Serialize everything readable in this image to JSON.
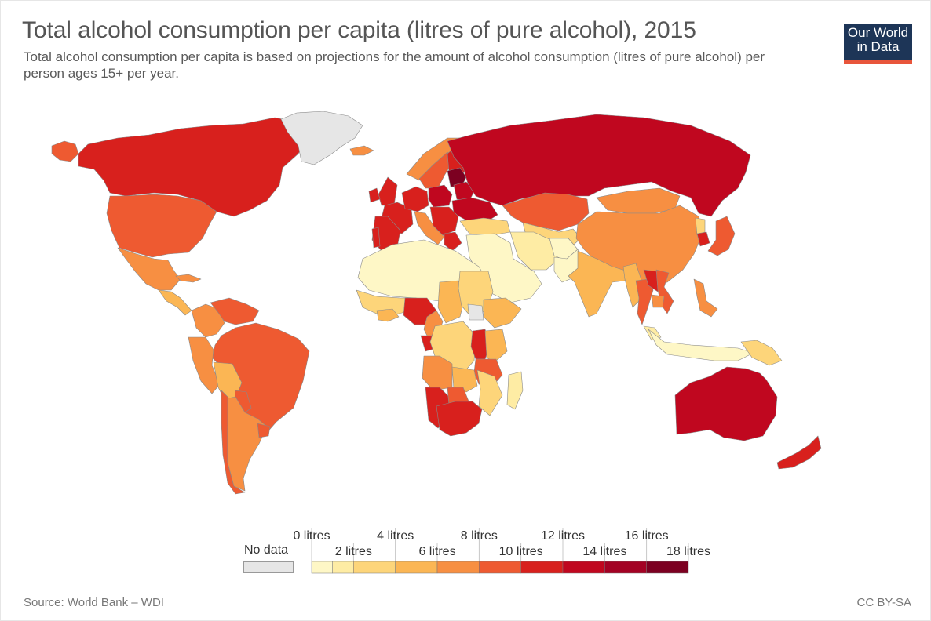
{
  "title": "Total alcohol consumption per capita (litres of pure alcohol), 2015",
  "subtitle": "Total alcohol consumption per capita is based on projections for the amount of alcohol consumption (litres of pure alcohol) per person ages 15+ per year.",
  "logo": {
    "line1": "Our World",
    "line2": "in Data",
    "bg_color": "#1d3557",
    "accent_color": "#e8553b"
  },
  "legend": {
    "no_data_label": "No data",
    "no_data_color": "#e6e6e6",
    "bins": [
      {
        "min": 0,
        "max": 1,
        "color": "#fef7c6"
      },
      {
        "min": 1,
        "max": 2,
        "color": "#feeca4"
      },
      {
        "min": 2,
        "max": 4,
        "color": "#fdd57a"
      },
      {
        "min": 4,
        "max": 6,
        "color": "#fbb654"
      },
      {
        "min": 6,
        "max": 8,
        "color": "#f78f42"
      },
      {
        "min": 8,
        "max": 10,
        "color": "#ee5a31"
      },
      {
        "min": 10,
        "max": 12,
        "color": "#d8201d"
      },
      {
        "min": 12,
        "max": 14,
        "color": "#c0071f"
      },
      {
        "min": 14,
        "max": 16,
        "color": "#a30224"
      },
      {
        "min": 16,
        "max": 18,
        "color": "#7c0021"
      }
    ],
    "tick_labels_top": [
      "0 litres",
      "4 litres",
      "8 litres",
      "12 litres",
      "16 litres"
    ],
    "tick_labels_bottom": [
      "2 litres",
      "6 litres",
      "10 litres",
      "14 litres",
      "18 litres"
    ]
  },
  "regions": [
    {
      "name": "Alaska",
      "value": 9.5
    },
    {
      "name": "Canada",
      "value": 10.2
    },
    {
      "name": "United States",
      "value": 9.3
    },
    {
      "name": "Mexico",
      "value": 6.5
    },
    {
      "name": "Central America",
      "value": 4.2
    },
    {
      "name": "Cuba",
      "value": 6.0
    },
    {
      "name": "Greenland",
      "value": null
    },
    {
      "name": "Colombia",
      "value": 6.0
    },
    {
      "name": "Venezuela",
      "value": 8.2
    },
    {
      "name": "Brazil",
      "value": 8.9
    },
    {
      "name": "Peru",
      "value": 7.0
    },
    {
      "name": "Bolivia",
      "value": 4.8
    },
    {
      "name": "Paraguay",
      "value": 8.6
    },
    {
      "name": "Chile",
      "value": 8.9
    },
    {
      "name": "Argentina",
      "value": 7.6
    },
    {
      "name": "Uruguay",
      "value": 8.3
    },
    {
      "name": "Iceland",
      "value": 6.3
    },
    {
      "name": "United Kingdom",
      "value": 11.0
    },
    {
      "name": "Ireland",
      "value": 11.1
    },
    {
      "name": "Norway",
      "value": 7.0
    },
    {
      "name": "Sweden",
      "value": 8.5
    },
    {
      "name": "Finland",
      "value": 10.5
    },
    {
      "name": "France",
      "value": 11.6
    },
    {
      "name": "Spain",
      "value": 10.4
    },
    {
      "name": "Portugal",
      "value": 11.9
    },
    {
      "name": "Germany",
      "value": 11.4
    },
    {
      "name": "Poland",
      "value": 12.8
    },
    {
      "name": "Baltic states",
      "value": 16.5
    },
    {
      "name": "Belarus",
      "value": 13.7
    },
    {
      "name": "Ukraine",
      "value": 13.0
    },
    {
      "name": "Italy",
      "value": 7.6
    },
    {
      "name": "Balkans",
      "value": 10.5
    },
    {
      "name": "Greece",
      "value": 10.6
    },
    {
      "name": "Turkey",
      "value": 2.0
    },
    {
      "name": "Russia",
      "value": 13.9
    },
    {
      "name": "Kazakhstan",
      "value": 9.2
    },
    {
      "name": "Central Asia",
      "value": 3.0
    },
    {
      "name": "Mongolia",
      "value": 7.4
    },
    {
      "name": "China",
      "value": 7.2
    },
    {
      "name": "North Korea",
      "value": 3.9
    },
    {
      "name": "South Korea",
      "value": 10.9
    },
    {
      "name": "Japan",
      "value": 8.0
    },
    {
      "name": "Middle East",
      "value": 0.5
    },
    {
      "name": "Iran",
      "value": 1.0
    },
    {
      "name": "Afghanistan",
      "value": 0.2
    },
    {
      "name": "Pakistan",
      "value": 0.3
    },
    {
      "name": "India",
      "value": 5.7
    },
    {
      "name": "Myanmar",
      "value": 4.8
    },
    {
      "name": "Thailand",
      "value": 8.3
    },
    {
      "name": "Laos",
      "value": 10.1
    },
    {
      "name": "Vietnam",
      "value": 8.7
    },
    {
      "name": "Cambodia",
      "value": 6.7
    },
    {
      "name": "Philippines",
      "value": 6.6
    },
    {
      "name": "Malaysia",
      "value": 1.3
    },
    {
      "name": "Indonesia",
      "value": 0.8
    },
    {
      "name": "Papua New Guinea",
      "value": 3.2
    },
    {
      "name": "Australia",
      "value": 12.6
    },
    {
      "name": "New Zealand",
      "value": 11.3
    },
    {
      "name": "Sahara",
      "value": 0.5
    },
    {
      "name": "Sahel",
      "value": 2.0
    },
    {
      "name": "Burkina Faso",
      "value": 5.0
    },
    {
      "name": "Nigeria",
      "value": 11.3
    },
    {
      "name": "Cameroon",
      "value": 6.5
    },
    {
      "name": "Chad",
      "value": 4.6
    },
    {
      "name": "Sudan",
      "value": 2.1
    },
    {
      "name": "Ethiopia",
      "value": 4.5
    },
    {
      "name": "Somalia",
      "value": null
    },
    {
      "name": "Gabon",
      "value": 10.8
    },
    {
      "name": "DR Congo",
      "value": 3.7
    },
    {
      "name": "Uganda",
      "value": 11.0
    },
    {
      "name": "Kenya",
      "value": 4.3
    },
    {
      "name": "Tanzania",
      "value": 8.6
    },
    {
      "name": "Angola",
      "value": 6.7
    },
    {
      "name": "Zambia",
      "value": 4.0
    },
    {
      "name": "Mozambique",
      "value": 2.3
    },
    {
      "name": "Namibia",
      "value": 10.5
    },
    {
      "name": "Botswana",
      "value": 8.4
    },
    {
      "name": "South Africa",
      "value": 11.2
    },
    {
      "name": "Madagascar",
      "value": 1.8
    }
  ],
  "source": "Source: World Bank – WDI",
  "license": "CC BY-SA"
}
